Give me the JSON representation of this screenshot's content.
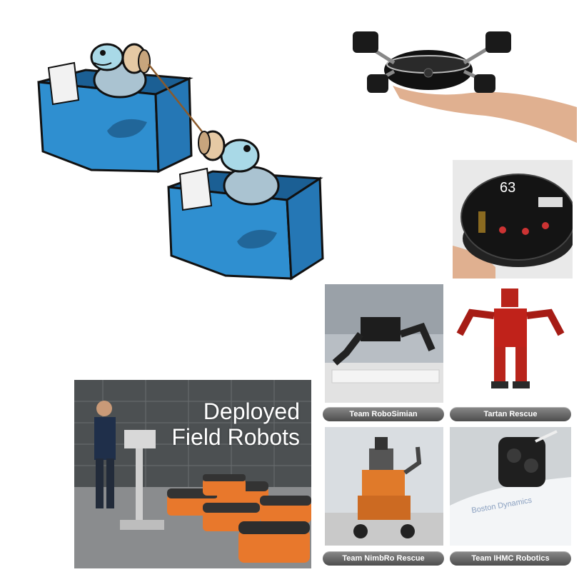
{
  "warehouse": {
    "title_line1": "Deployed",
    "title_line2": "Field Robots"
  },
  "board": {
    "label": "63"
  },
  "teams": [
    {
      "caption": "Team RoboSimian"
    },
    {
      "caption": "Tartan Rescue"
    },
    {
      "caption": "Team NimbRo Rescue"
    },
    {
      "caption": "Team IHMC Robotics"
    }
  ],
  "ihmc_brand_text": "Boston Dynamics",
  "colors": {
    "container_blue": "#2f8fd0",
    "container_dark": "#1f6ea8",
    "caption_gray": "#5a5a5a",
    "kiva_orange": "#e8782c",
    "atlas_red": "#c0221a"
  }
}
